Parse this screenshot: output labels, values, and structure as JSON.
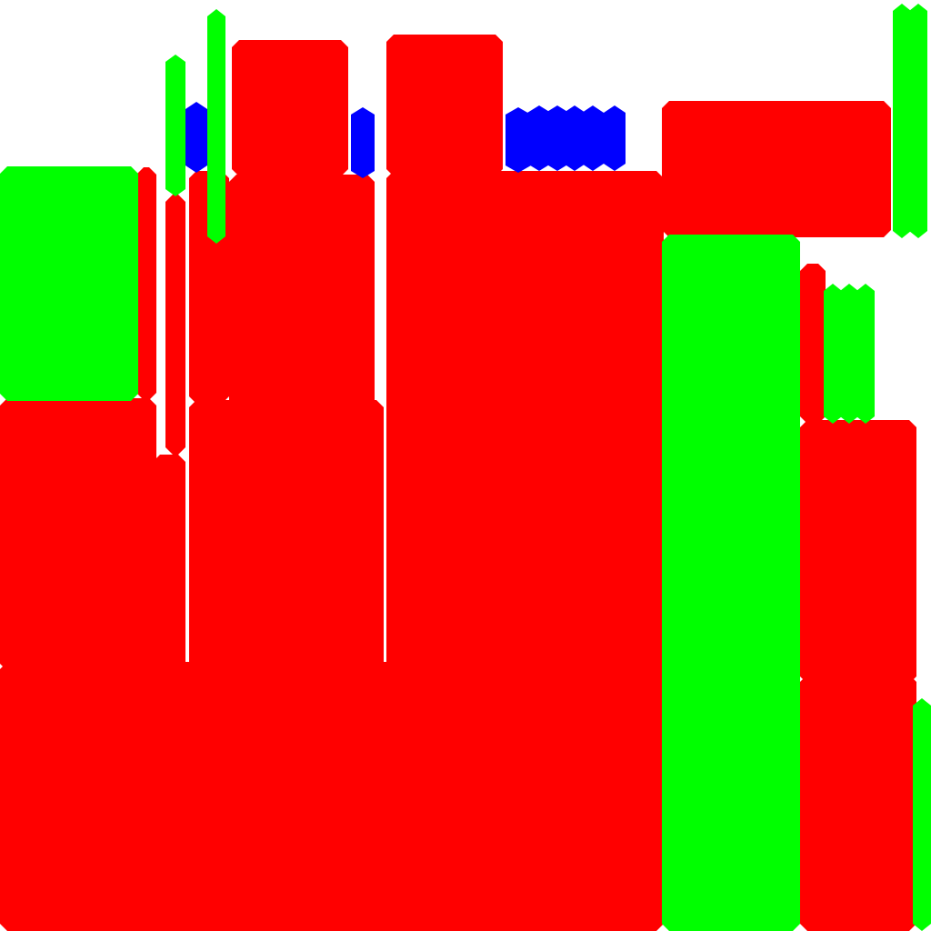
{
  "colors": {
    "background": "#ffffff",
    "red": "#ff0000",
    "green": "#00ff00",
    "blue": "#0000ff"
  }
}
